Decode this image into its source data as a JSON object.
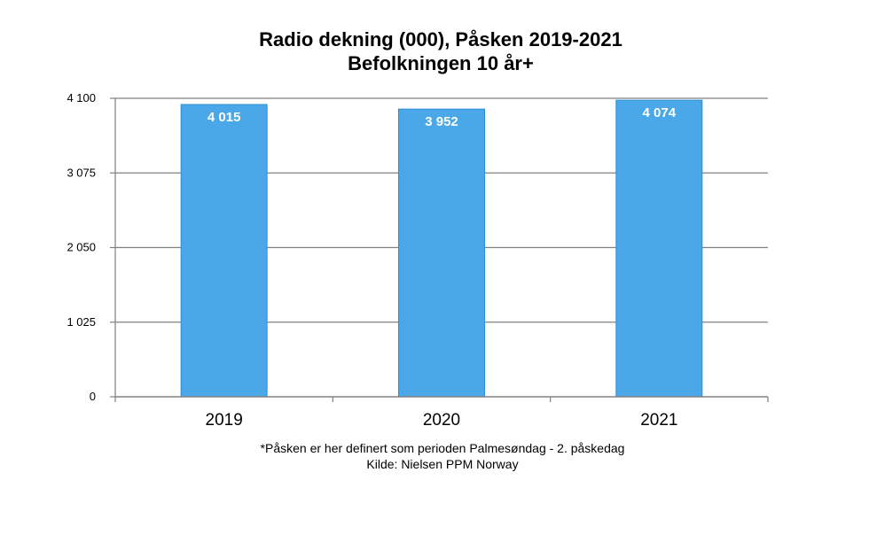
{
  "chart_data": {
    "type": "bar",
    "title": "Radio dekning (000), Påsken 2019-2021",
    "subtitle": "Befolkningen 10 år+",
    "categories": [
      "2019",
      "2020",
      "2021"
    ],
    "values": [
      4015,
      3952,
      4074
    ],
    "value_labels": [
      "4 015",
      "3 952",
      "4 074"
    ],
    "yticks": [
      0,
      1025,
      2050,
      3075,
      4100
    ],
    "ytick_labels": [
      "0",
      "1 025",
      "2 050",
      "3 075",
      "4 100"
    ],
    "ylim": [
      0,
      4100
    ],
    "grid": true,
    "legend": "none",
    "bar_color": "#4aa8e8",
    "bar_edge_color": "#2b8fd6",
    "grid_color": "#808080"
  },
  "footnote": {
    "definition": "*Påsken er her definert som perioden Palmesøndag - 2. påskedag",
    "source": "Kilde: Nielsen PPM Norway"
  }
}
